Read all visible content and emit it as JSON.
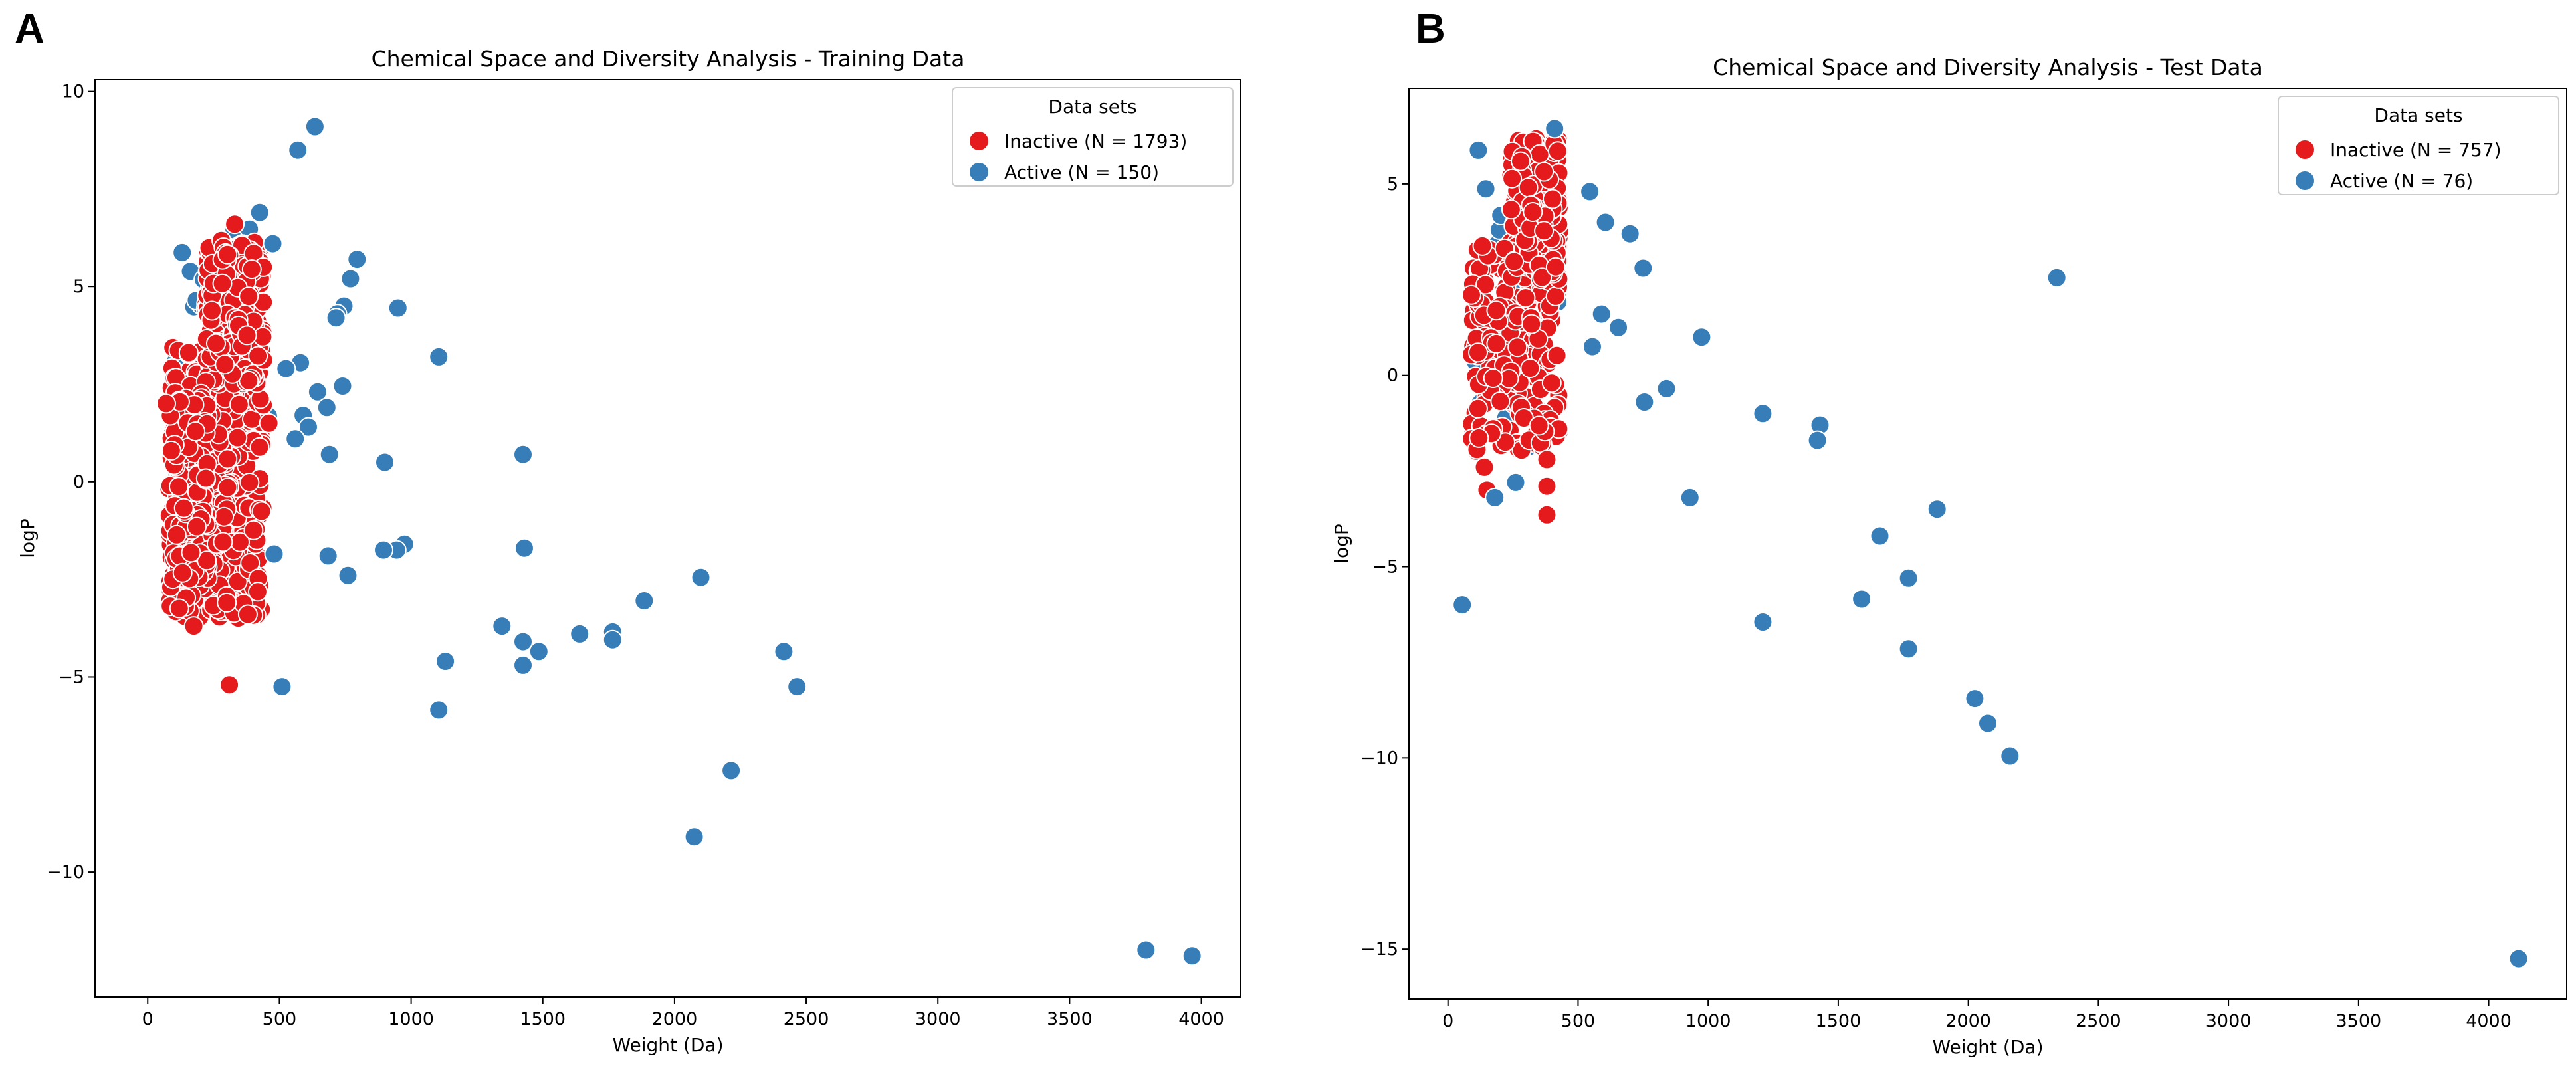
{
  "panels": [
    {
      "letter": "A"
    },
    {
      "letter": "B"
    }
  ],
  "colors": {
    "inactive": "#e41a1c",
    "active": "#377eb8"
  },
  "chart_data": [
    {
      "type": "scatter",
      "title": "Chemical Space and Diversity Analysis - Training Data",
      "xlabel": "Weight (Da)",
      "ylabel": "logP",
      "xlim": [
        -200,
        4150
      ],
      "ylim": [
        -13.2,
        10.3
      ],
      "xticks": [
        0,
        500,
        1000,
        1500,
        2000,
        2500,
        3000,
        3500,
        4000
      ],
      "yticks": [
        -10,
        -5,
        0,
        5,
        10
      ],
      "legend": {
        "title": "Data sets",
        "position": "top-right",
        "entries": [
          "Inactive (N = 1793)",
          "Active (N = 150)"
        ]
      },
      "series": [
        {
          "name": "Inactive (N = 1793)",
          "color": "#e41a1c",
          "cluster": {
            "regions": [
              {
                "x": [
                  80,
                  440
                ],
                "y": [
                  -3.5,
                  3.5
                ],
                "n": 420
              },
              {
                "x": [
                  220,
                  440
                ],
                "y": [
                  2.5,
                  6.2
                ],
                "n": 260
              },
              {
                "x": [
                  80,
                  230
                ],
                "y": [
                  -2.5,
                  2.3
                ],
                "n": 120
              }
            ]
          },
          "points": [
            {
              "x": 330,
              "y": 6.6
            },
            {
              "x": 310,
              "y": -5.2
            },
            {
              "x": 175,
              "y": -3.7
            },
            {
              "x": 380,
              "y": -3.4
            },
            {
              "x": 300,
              "y": -3.1
            },
            {
              "x": 90,
              "y": 0.8
            },
            {
              "x": 460,
              "y": 1.5
            },
            {
              "x": 70,
              "y": 2.0
            }
          ]
        },
        {
          "name": "Active (N = 150)",
          "color": "#377eb8",
          "cluster": {
            "regions": [
              {
                "x": [
                  100,
                  460
                ],
                "y": [
                  -3.0,
                  6.5
                ],
                "n": 60
              }
            ]
          },
          "points": [
            {
              "x": 635,
              "y": 9.1
            },
            {
              "x": 570,
              "y": 8.5
            },
            {
              "x": 425,
              "y": 6.9
            },
            {
              "x": 475,
              "y": 6.1
            },
            {
              "x": 795,
              "y": 5.7
            },
            {
              "x": 770,
              "y": 5.2
            },
            {
              "x": 745,
              "y": 4.5
            },
            {
              "x": 720,
              "y": 4.3
            },
            {
              "x": 950,
              "y": 4.45
            },
            {
              "x": 715,
              "y": 4.2
            },
            {
              "x": 1105,
              "y": 3.2
            },
            {
              "x": 580,
              "y": 3.05
            },
            {
              "x": 525,
              "y": 2.9
            },
            {
              "x": 740,
              "y": 2.45
            },
            {
              "x": 645,
              "y": 2.3
            },
            {
              "x": 680,
              "y": 1.9
            },
            {
              "x": 590,
              "y": 1.7
            },
            {
              "x": 610,
              "y": 1.4
            },
            {
              "x": 560,
              "y": 1.1
            },
            {
              "x": 690,
              "y": 0.7
            },
            {
              "x": 900,
              "y": 0.5
            },
            {
              "x": 1425,
              "y": 0.7
            },
            {
              "x": 975,
              "y": -1.6
            },
            {
              "x": 945,
              "y": -1.75
            },
            {
              "x": 895,
              "y": -1.75
            },
            {
              "x": 1430,
              "y": -1.7
            },
            {
              "x": 685,
              "y": -1.9
            },
            {
              "x": 480,
              "y": -1.85
            },
            {
              "x": 760,
              "y": -2.4
            },
            {
              "x": 2100,
              "y": -2.45
            },
            {
              "x": 1885,
              "y": -3.05
            },
            {
              "x": 1345,
              "y": -3.7
            },
            {
              "x": 1640,
              "y": -3.9
            },
            {
              "x": 1765,
              "y": -3.85
            },
            {
              "x": 1765,
              "y": -4.05
            },
            {
              "x": 1425,
              "y": -4.1
            },
            {
              "x": 1485,
              "y": -4.35
            },
            {
              "x": 2415,
              "y": -4.35
            },
            {
              "x": 1130,
              "y": -4.6
            },
            {
              "x": 1425,
              "y": -4.7
            },
            {
              "x": 510,
              "y": -5.25
            },
            {
              "x": 2465,
              "y": -5.25
            },
            {
              "x": 1105,
              "y": -5.85
            },
            {
              "x": 2215,
              "y": -7.4
            },
            {
              "x": 2075,
              "y": -9.1
            },
            {
              "x": 3790,
              "y": -12.0
            },
            {
              "x": 3965,
              "y": -12.15
            }
          ]
        }
      ]
    },
    {
      "type": "scatter",
      "title": "Chemical Space and Diversity Analysis - Test Data",
      "xlabel": "Weight (Da)",
      "ylabel": "logP",
      "xlim": [
        -150,
        4300
      ],
      "ylim": [
        -16.3,
        7.5
      ],
      "xticks": [
        0,
        500,
        1000,
        1500,
        2000,
        2500,
        3000,
        3500,
        4000
      ],
      "yticks": [
        -15,
        -10,
        -5,
        0,
        5
      ],
      "legend": {
        "title": "Data sets",
        "position": "top-right",
        "entries": [
          "Inactive (N = 757)",
          "Active (N = 76)"
        ]
      },
      "series": [
        {
          "name": "Inactive (N = 757)",
          "color": "#e41a1c",
          "cluster": {
            "regions": [
              {
                "x": [
                  90,
                  430
                ],
                "y": [
                  -2.0,
                  3.5
                ],
                "n": 260
              },
              {
                "x": [
                  240,
                  430
                ],
                "y": [
                  2.5,
                  6.2
                ],
                "n": 170
              }
            ]
          },
          "points": [
            {
              "x": 380,
              "y": -3.65
            },
            {
              "x": 380,
              "y": -2.9
            },
            {
              "x": 150,
              "y": -3.0
            },
            {
              "x": 380,
              "y": -2.2
            },
            {
              "x": 140,
              "y": -2.4
            },
            {
              "x": 90,
              "y": 2.1
            }
          ]
        },
        {
          "name": "Active (N = 76)",
          "color": "#377eb8",
          "cluster": {
            "regions": [
              {
                "x": [
                  100,
                  440
                ],
                "y": [
                  -2.0,
                  6.0
                ],
                "n": 35
              }
            ]
          },
          "points": [
            {
              "x": 410,
              "y": 6.45
            },
            {
              "x": 545,
              "y": 4.8
            },
            {
              "x": 605,
              "y": 4.0
            },
            {
              "x": 700,
              "y": 3.7
            },
            {
              "x": 750,
              "y": 2.8
            },
            {
              "x": 2340,
              "y": 2.55
            },
            {
              "x": 590,
              "y": 1.6
            },
            {
              "x": 655,
              "y": 1.25
            },
            {
              "x": 975,
              "y": 1.0
            },
            {
              "x": 555,
              "y": 0.75
            },
            {
              "x": 840,
              "y": -0.35
            },
            {
              "x": 755,
              "y": -0.7
            },
            {
              "x": 1210,
              "y": -1.0
            },
            {
              "x": 1430,
              "y": -1.3
            },
            {
              "x": 1420,
              "y": -1.7
            },
            {
              "x": 260,
              "y": -2.8
            },
            {
              "x": 180,
              "y": -3.2
            },
            {
              "x": 930,
              "y": -3.2
            },
            {
              "x": 1880,
              "y": -3.5
            },
            {
              "x": 1660,
              "y": -4.2
            },
            {
              "x": 1770,
              "y": -5.3
            },
            {
              "x": 1590,
              "y": -5.85
            },
            {
              "x": 55,
              "y": -6.0
            },
            {
              "x": 1210,
              "y": -6.45
            },
            {
              "x": 1770,
              "y": -7.15
            },
            {
              "x": 2025,
              "y": -8.45
            },
            {
              "x": 2075,
              "y": -9.1
            },
            {
              "x": 2160,
              "y": -9.95
            },
            {
              "x": 4115,
              "y": -15.25
            }
          ]
        }
      ]
    }
  ]
}
